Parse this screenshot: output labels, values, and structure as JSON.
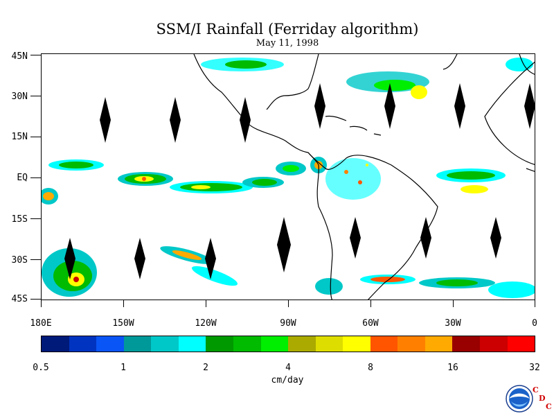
{
  "title": "SSM/I Rainfall (Ferriday algorithm)",
  "subtitle": "May 11, 1998",
  "lat_labels": [
    "45N",
    "30N",
    "15N",
    "EQ",
    "15S",
    "30S",
    "45S"
  ],
  "lon_labels": [
    "180E",
    "150W",
    "120W",
    "90W",
    "60W",
    "30W",
    "0"
  ],
  "colorbar": {
    "labels": [
      "0.5",
      "1",
      "2",
      "4",
      "8",
      "16",
      "32"
    ],
    "unit": "cm/day",
    "colors": [
      "#001A7A",
      "#0033BF",
      "#0A55F5",
      "#009999",
      "#00C8C8",
      "#00FFFF",
      "#009900",
      "#00BB00",
      "#00EE00",
      "#AAAA00",
      "#DDDD00",
      "#FFFF00",
      "#FF5500",
      "#FF8000",
      "#FFAA00",
      "#990000",
      "#CC0000",
      "#FF0000"
    ]
  },
  "logo": {
    "name": "NOAA",
    "credit": "CDC"
  }
}
